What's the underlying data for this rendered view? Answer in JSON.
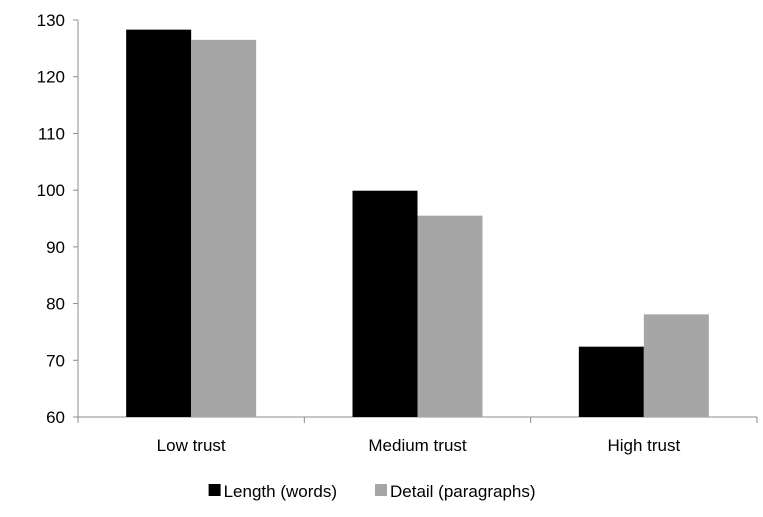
{
  "chart_data": {
    "type": "bar",
    "categories": [
      "Low trust",
      "Medium trust",
      "High trust"
    ],
    "series": [
      {
        "name": "Length (words)",
        "values": [
          128.3,
          99.9,
          72.4
        ],
        "color": "#000000"
      },
      {
        "name": "Detail (paragraphs)",
        "values": [
          126.5,
          95.5,
          78.1
        ],
        "color": "#a6a6a6"
      }
    ],
    "ylim": [
      60,
      130
    ],
    "yticks": [
      60,
      70,
      80,
      90,
      100,
      110,
      120,
      130
    ],
    "xlabel": "",
    "ylabel": "",
    "title": "",
    "grid": false,
    "legend_position": "bottom"
  }
}
